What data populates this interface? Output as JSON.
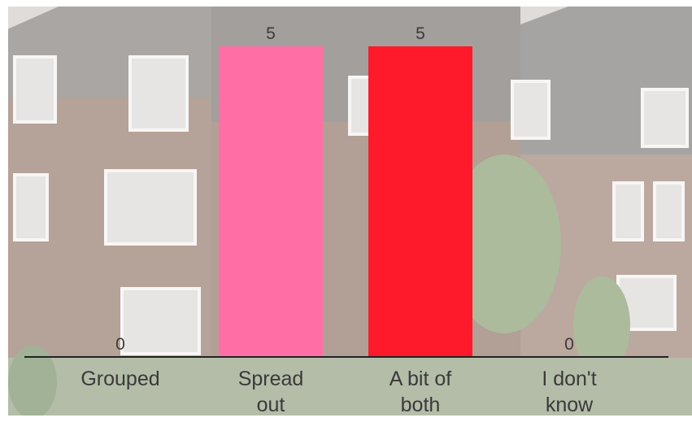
{
  "colors": {
    "background_overlay": "#ffffff",
    "brick": "#7d5f52",
    "roof": "#5b5653",
    "baseline": "#222222",
    "text": "#3a3a3a"
  },
  "chart_data": {
    "type": "bar",
    "categories": [
      [
        "Grouped"
      ],
      [
        "Spread",
        "out"
      ],
      [
        "A bit of",
        "both"
      ],
      [
        "I don't",
        "know"
      ]
    ],
    "values": [
      0,
      5,
      5,
      0
    ],
    "colors": [
      "#ff6fa5",
      "#ff6fa5",
      "#ff1a2b",
      "#ff1a2b"
    ],
    "ylim": [
      0,
      5
    ],
    "grid": false,
    "legend": "none",
    "background": "photo of brick townhouses, faded"
  }
}
